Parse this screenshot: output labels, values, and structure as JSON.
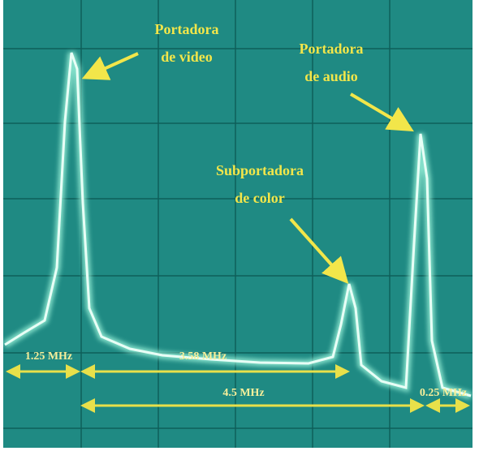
{
  "annotations": [
    {
      "lines": [
        "Portadora",
        "de video"
      ]
    },
    {
      "lines": [
        "Portadora",
        "de audio"
      ]
    },
    {
      "lines": [
        "Subportadora",
        "de color"
      ]
    }
  ],
  "spacings": [
    "1.25 MHz",
    "3.58 MHz",
    "4.5 MHz",
    "0.25 MHz"
  ]
}
